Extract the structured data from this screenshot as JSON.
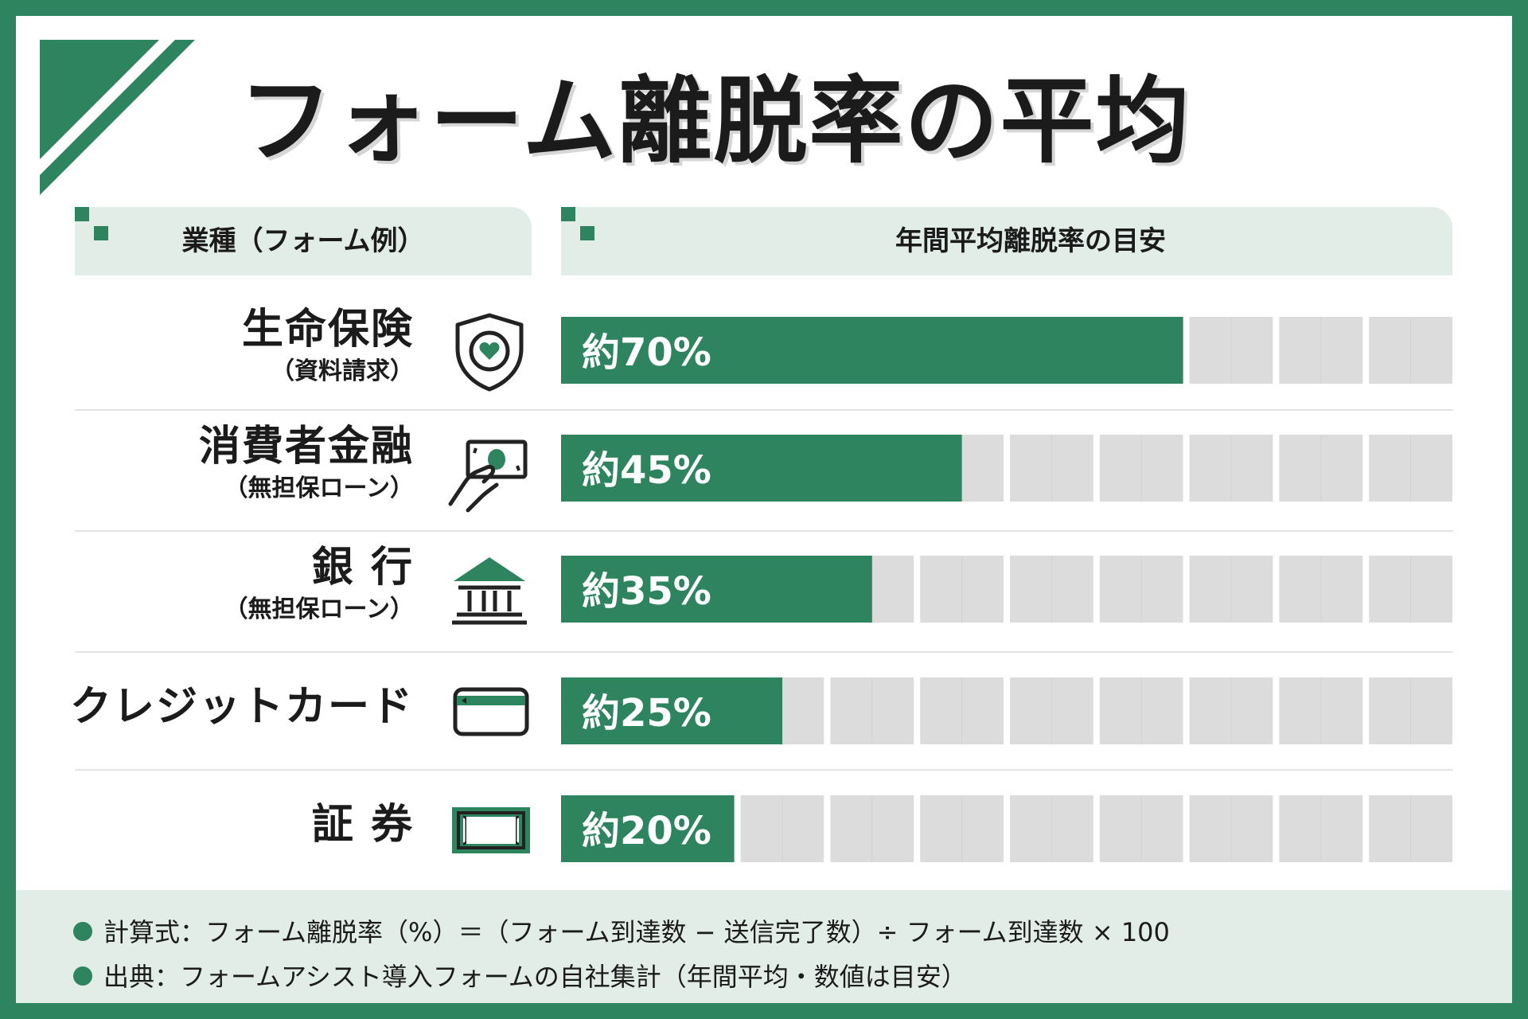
{
  "title": "フォーム離脱率の平均",
  "headers": {
    "industry": "業種（フォーム例）",
    "rate": "年間平均離脱率の目安"
  },
  "colors": {
    "accent": "#2f8460",
    "bar_track": "#dcdcdc",
    "header_bg": "#e2ede7"
  },
  "chart_data": {
    "type": "bar",
    "orientation": "horizontal",
    "categories": [
      "生命保険（資料請求）",
      "消費者金融（無担保ローン）",
      "銀行（無担保ローン）",
      "クレジットカード",
      "証券"
    ],
    "values": [
      70,
      45,
      35,
      25,
      20
    ],
    "value_labels": [
      "約70%",
      "約45%",
      "約35%",
      "約25%",
      "約20%"
    ],
    "unit": "%",
    "xlim": [
      0,
      100
    ]
  },
  "rows": [
    {
      "title": "生命保険",
      "sub": "（資料請求）",
      "label": "約70%",
      "icon": "shield-heart-icon"
    },
    {
      "title": "消費者金融",
      "sub": "（無担保ローン）",
      "label": "約45%",
      "icon": "hand-cash-icon"
    },
    {
      "title": "銀 行",
      "sub": "（無担保ローン）",
      "label": "約35%",
      "icon": "bank-icon"
    },
    {
      "title": "クレジットカード",
      "sub": "",
      "label": "約25%",
      "icon": "credit-card-icon"
    },
    {
      "title": "証 券",
      "sub": "",
      "label": "約20%",
      "icon": "certificate-icon"
    }
  ],
  "notes": [
    "計算式：フォーム離脱率（%）＝（フォーム到達数 − 送信完了数）÷ フォーム到達数 × 100",
    "出典：フォームアシスト導入フォームの自社集計（年間平均・数値は目安）"
  ]
}
